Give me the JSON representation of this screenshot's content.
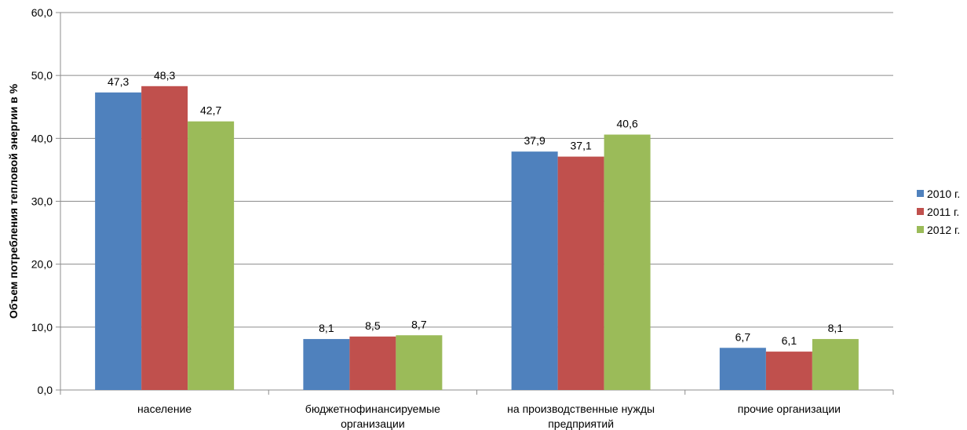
{
  "chart_data": {
    "type": "bar",
    "ylabel": "Объем потребления тепловой энергии в %",
    "xlabel": "",
    "ylim": [
      0,
      60
    ],
    "yticks": [
      "0,0",
      "10,0",
      "20,0",
      "30,0",
      "40,0",
      "50,0",
      "60,0"
    ],
    "grid": true,
    "legend_position": "right",
    "categories": [
      [
        "население"
      ],
      [
        "бюджетнофинансируемые",
        "организации"
      ],
      [
        "на производственные нужды",
        "предприятий"
      ],
      [
        "прочие организации"
      ]
    ],
    "series": [
      {
        "name": "2010 г.",
        "color": "#4F81BD",
        "values": [
          47.3,
          8.1,
          37.9,
          6.7
        ],
        "labels": [
          "47,3",
          "8,1",
          "37,9",
          "6,7"
        ]
      },
      {
        "name": "2011 г.",
        "color": "#C0504D",
        "values": [
          48.3,
          8.5,
          37.1,
          6.1
        ],
        "labels": [
          "48,3",
          "8,5",
          "37,1",
          "6,1"
        ]
      },
      {
        "name": "2012 г.",
        "color": "#9BBB59",
        "values": [
          42.7,
          8.7,
          40.6,
          8.1
        ],
        "labels": [
          "42,7",
          "8,7",
          "40,6",
          "8,1"
        ]
      }
    ]
  }
}
